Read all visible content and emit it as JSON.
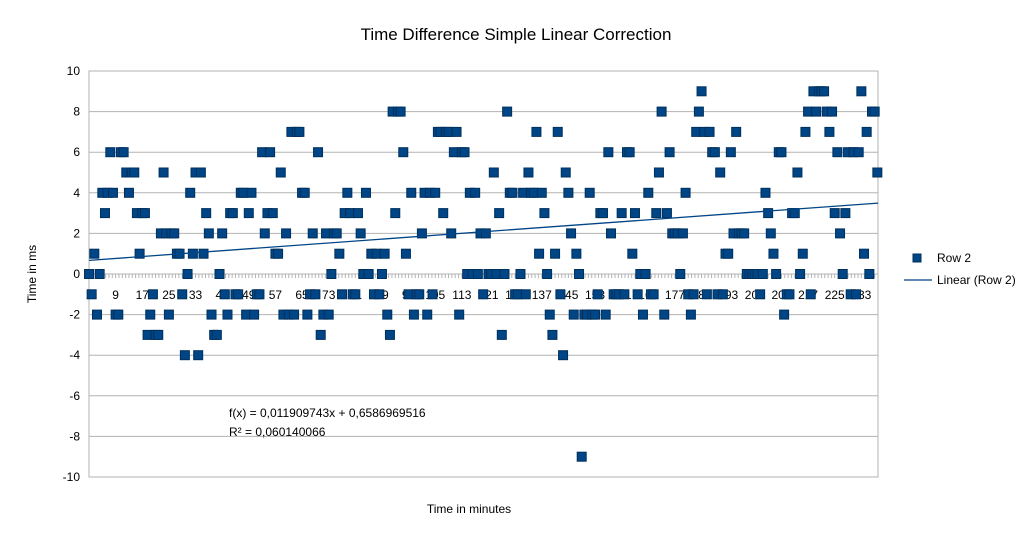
{
  "chart_data": {
    "type": "scatter",
    "title": "Time Difference Simple Linear Correction",
    "xlabel": "Time in minutes",
    "ylabel": "Time in ms",
    "ylim": [
      -10,
      10
    ],
    "xlim": [
      1,
      238
    ],
    "y_ticks": [
      10,
      8,
      6,
      4,
      2,
      0,
      -2,
      -4,
      -6,
      -8,
      -10
    ],
    "x_tick_labels": [
      "1",
      "9",
      "17",
      "25",
      "33",
      "41",
      "49",
      "57",
      "65",
      "73",
      "81",
      "89",
      "97",
      "105",
      "113",
      "121",
      "129",
      "137",
      "145",
      "153",
      "161",
      "169",
      "177",
      "185",
      "193",
      "201",
      "209",
      "217",
      "225",
      "233"
    ],
    "grid": "horizontal",
    "legend_position": "right",
    "colors": {
      "series": "#004586",
      "trend": "#004586",
      "grid": "#b3b3b3"
    },
    "series": [
      {
        "name": "Row 2",
        "marker": "square",
        "values": [
          0,
          -1,
          1,
          -2,
          0,
          4,
          3,
          4,
          6,
          4,
          -2,
          -2,
          6,
          6,
          5,
          4,
          5,
          5,
          3,
          1,
          3,
          3,
          -3,
          -2,
          -1,
          -3,
          -3,
          2,
          5,
          2,
          -2,
          2,
          2,
          1,
          1,
          -1,
          -4,
          0,
          4,
          1,
          5,
          -4,
          5,
          1,
          3,
          2,
          -2,
          -3,
          -3,
          0,
          2,
          -1,
          -2,
          3,
          3,
          -1,
          -1,
          4,
          4,
          -2,
          3,
          4,
          -2,
          -1,
          -1,
          6,
          2,
          3,
          6,
          3,
          1,
          1,
          5,
          -2,
          2,
          -2,
          7,
          -2,
          7,
          7,
          4,
          4,
          -2,
          -1,
          2,
          -1,
          6,
          -3,
          -2,
          2,
          -2,
          0,
          2,
          2,
          1,
          -1,
          3,
          4,
          3,
          -1,
          -1,
          3,
          2,
          0,
          4,
          0,
          1,
          -1,
          1,
          -1,
          0,
          1,
          -2,
          -3,
          8,
          3,
          8,
          8,
          6,
          1,
          -1,
          4,
          -2,
          -1,
          -1,
          2,
          4,
          -2,
          4,
          -1,
          4,
          7,
          7,
          3,
          7,
          7,
          2,
          6,
          7,
          -2,
          6,
          6,
          0,
          4,
          0,
          4,
          0,
          2,
          -1,
          2,
          0,
          0,
          5,
          0,
          3,
          -3,
          0,
          8,
          4,
          4,
          -1,
          -1,
          0,
          4,
          -1,
          5,
          4,
          4,
          7,
          1,
          4,
          3,
          0,
          -2,
          -3,
          1,
          7,
          -1,
          -4,
          5,
          4,
          2,
          -2,
          1,
          0,
          -9,
          -2,
          -2,
          4,
          -2,
          -2,
          -1,
          3,
          3,
          -2,
          6,
          2,
          -1,
          -1,
          -1,
          3,
          -1,
          6,
          6,
          1,
          3,
          -1,
          0,
          -2,
          0,
          4,
          -1,
          -1,
          3,
          5,
          8,
          -2,
          3,
          6,
          2,
          2,
          2,
          0,
          2,
          4,
          -1,
          -2,
          -1,
          7,
          8,
          9,
          7,
          -1,
          7,
          6,
          6,
          -1,
          5,
          -1,
          1,
          1,
          6,
          2,
          7,
          2,
          2,
          2,
          0,
          0,
          0,
          0,
          0,
          -1,
          0,
          4,
          3,
          2,
          1,
          0,
          6,
          6,
          -2,
          -1,
          -1,
          3,
          3,
          5,
          0,
          1,
          7,
          8,
          -1,
          9,
          8,
          9,
          9,
          9,
          8,
          7,
          8,
          3,
          6,
          2,
          0,
          3,
          6,
          -1,
          6,
          -1,
          6,
          9,
          1,
          7,
          0,
          8,
          8,
          5,
          8
        ],
        "x_start": 1,
        "x_step": 0.8
      },
      {
        "name": "Linear (Row 2)",
        "kind": "trendline",
        "slope": 0.011909743,
        "intercept": 0.6586969516
      }
    ],
    "annotations": [
      "f(x) = 0,011909743x + 0,6586969516",
      "R² = 0,060140066"
    ]
  }
}
